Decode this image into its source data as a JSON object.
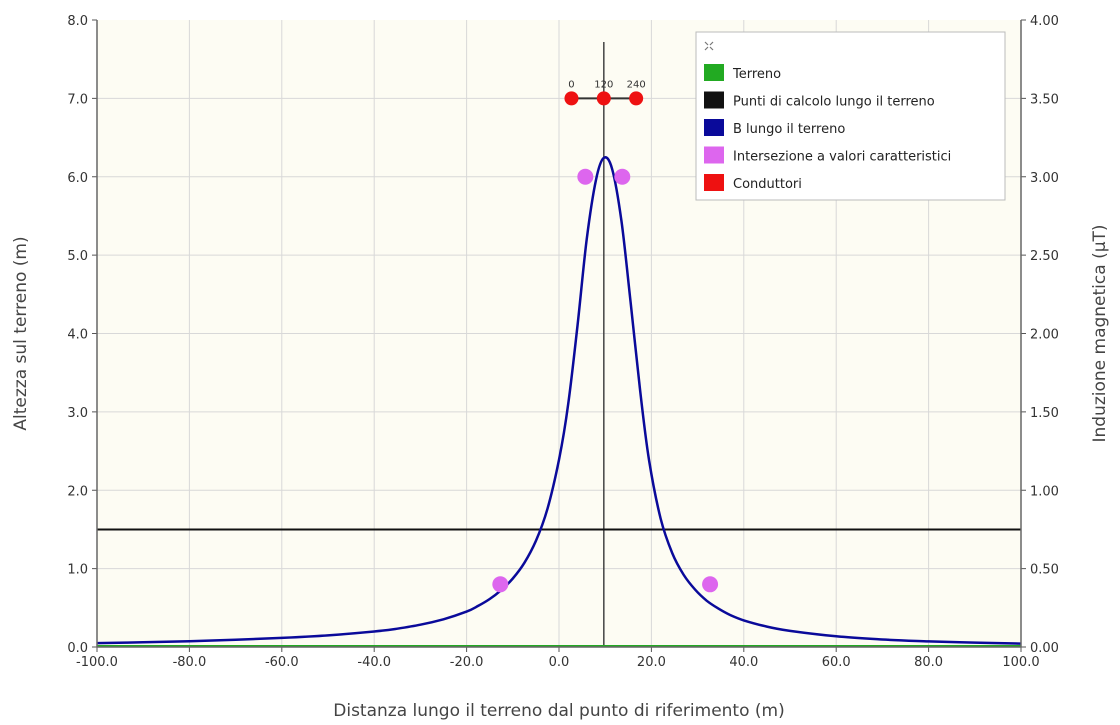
{
  "chart_data": {
    "type": "line",
    "xlabel": "Distanza lungo il terreno dal punto di riferimento (m)",
    "ylabel_left": "Altezza sul terreno (m)",
    "ylabel_right": "Induzione magnetica (µT)",
    "xlim": [
      -100,
      100
    ],
    "ylim_left": [
      0,
      8
    ],
    "ylim_right": [
      0,
      4
    ],
    "x_ticks": [
      "-100.0",
      "-80.0",
      "-60.0",
      "-40.0",
      "-20.0",
      "0.0",
      "20.0",
      "40.0",
      "60.0",
      "80.0",
      "100.0"
    ],
    "y_left_ticks": [
      "0.0",
      "1.0",
      "2.0",
      "3.0",
      "4.0",
      "5.0",
      "6.0",
      "7.0",
      "8.0"
    ],
    "y_right_ticks": [
      "0.00",
      "0.50",
      "1.00",
      "1.50",
      "2.00",
      "2.50",
      "3.00",
      "3.50",
      "4.00"
    ],
    "grid": true,
    "legend_position": "top-right",
    "legend_icon": "fullscreen-icon",
    "series": [
      {
        "name": "Terreno",
        "color": "#22aa22",
        "axis": "left",
        "x": [
          -100,
          100
        ],
        "y": [
          0,
          0
        ]
      },
      {
        "name": "Punti di calcolo lungo il terreno",
        "color": "#111111",
        "axis": "left",
        "x": [
          -100,
          100
        ],
        "y": [
          1.5,
          1.5
        ]
      },
      {
        "name": "B lungo il terreno",
        "color": "#0a0a9a",
        "axis": "right",
        "x": [
          -100,
          -90,
          -80,
          -70,
          -60,
          -50,
          -40,
          -35,
          -30,
          -25,
          -20,
          -17.5,
          -15,
          -12.5,
          -10,
          -7.5,
          -5,
          -2.5,
          0,
          2,
          4,
          6,
          8,
          9.7,
          11.5,
          13.5,
          15.5,
          17.5,
          19.5,
          22,
          24.5,
          27,
          29.5,
          32,
          34.5,
          37,
          40,
          45,
          50,
          60,
          70,
          80,
          90,
          100
        ],
        "y": [
          0.025,
          0.03,
          0.037,
          0.046,
          0.058,
          0.074,
          0.099,
          0.117,
          0.142,
          0.177,
          0.226,
          0.262,
          0.306,
          0.363,
          0.437,
          0.537,
          0.677,
          0.882,
          1.195,
          1.55,
          2.05,
          2.6,
          2.98,
          3.12,
          3.05,
          2.72,
          2.2,
          1.65,
          1.19,
          0.82,
          0.6,
          0.46,
          0.365,
          0.295,
          0.245,
          0.205,
          0.17,
          0.13,
          0.103,
          0.068,
          0.048,
          0.036,
          0.028,
          0.022
        ]
      },
      {
        "name": "Intersezione a valori caratteristici",
        "color": "#dd66ee",
        "axis": "right",
        "x": [
          -12.7,
          5.7,
          13.7,
          32.7
        ],
        "y": [
          0.4,
          3.0,
          3.0,
          0.4
        ]
      },
      {
        "name": "Conduttori",
        "color": "#ee1111",
        "axis": "left",
        "x": [
          2.7,
          9.7,
          16.7
        ],
        "y": [
          7.0,
          7.0,
          7.0
        ],
        "labels": [
          "0",
          "120",
          "240"
        ]
      }
    ],
    "reference_line_x": 9.7,
    "support_crossarm": {
      "x": [
        2.7,
        16.7
      ],
      "y": 7.0
    }
  }
}
